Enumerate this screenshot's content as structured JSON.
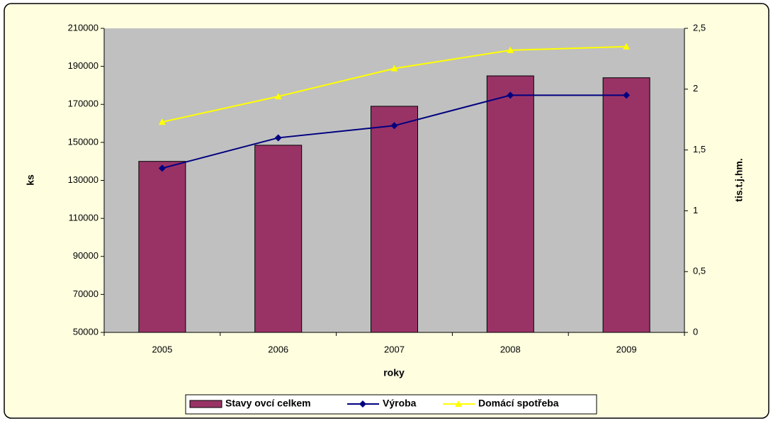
{
  "chart_data": {
    "type": "bar",
    "x_label": "roky",
    "y_label": "ks",
    "y2_label": "tis.t.j.hm.",
    "categories": [
      "2005",
      "2006",
      "2007",
      "2008",
      "2009"
    ],
    "series": [
      {
        "name": "Stavy ovcí celkem",
        "type": "bar",
        "color": "#993366",
        "values": [
          140000,
          148500,
          169000,
          185000,
          184000
        ]
      },
      {
        "name": "Výroba",
        "type": "line",
        "marker": "diamond",
        "axis": "y2",
        "color": "#000080",
        "values": [
          1.35,
          1.6,
          1.7,
          1.95,
          1.95
        ]
      },
      {
        "name": "Domácí spotřeba",
        "type": "line",
        "marker": "triangle",
        "axis": "y2",
        "color": "#ffff00",
        "values": [
          1.73,
          1.94,
          2.17,
          2.32,
          2.35
        ]
      }
    ],
    "ylim": [
      50000,
      210000
    ],
    "yticks": [
      50000,
      70000,
      90000,
      110000,
      130000,
      150000,
      170000,
      190000,
      210000
    ],
    "y2lim": [
      0,
      2.5
    ],
    "y2ticks": [
      0,
      {
        "value": 0.5,
        "label": "0,5"
      },
      1,
      {
        "value": 1.5,
        "label": "1,5"
      },
      2,
      {
        "value": 2.5,
        "label": "2,5"
      }
    ],
    "legend": "bottom"
  }
}
